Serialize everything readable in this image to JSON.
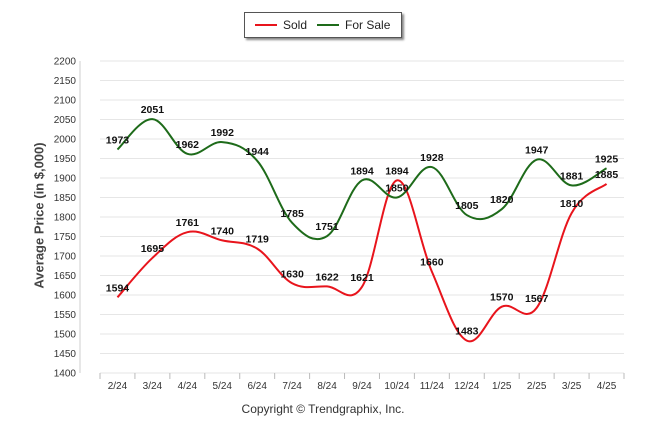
{
  "legend": {
    "sold_label": "Sold",
    "for_sale_label": "For Sale"
  },
  "footer": {
    "copyright": "Copyright © Trendgraphix, Inc."
  },
  "colors": {
    "sold": "#e8141c",
    "for_sale": "#1e6b1a",
    "grid": "#e6e6e6"
  },
  "chart_data": {
    "type": "line",
    "ylabel": "Average Price (in $,000)",
    "xlabel": "",
    "ylim": [
      1400,
      2200
    ],
    "yticks": [
      1400,
      1450,
      1500,
      1550,
      1600,
      1650,
      1700,
      1750,
      1800,
      1850,
      1900,
      1950,
      2000,
      2050,
      2100,
      2150,
      2200
    ],
    "categories": [
      "2/24",
      "3/24",
      "4/24",
      "5/24",
      "6/24",
      "7/24",
      "8/24",
      "9/24",
      "10/24",
      "11/24",
      "12/24",
      "1/25",
      "2/25",
      "3/25",
      "4/25"
    ],
    "grid": true,
    "legend_position": "top-center",
    "series": [
      {
        "name": "Sold",
        "values": [
          1594,
          1695,
          1761,
          1740,
          1719,
          1630,
          1622,
          1621,
          1894,
          1660,
          1483,
          1570,
          1567,
          1810,
          1885
        ]
      },
      {
        "name": "For Sale",
        "values": [
          1973,
          2051,
          1962,
          1992,
          1944,
          1785,
          1751,
          1894,
          1850,
          1928,
          1805,
          1820,
          1947,
          1881,
          1925
        ]
      }
    ]
  }
}
